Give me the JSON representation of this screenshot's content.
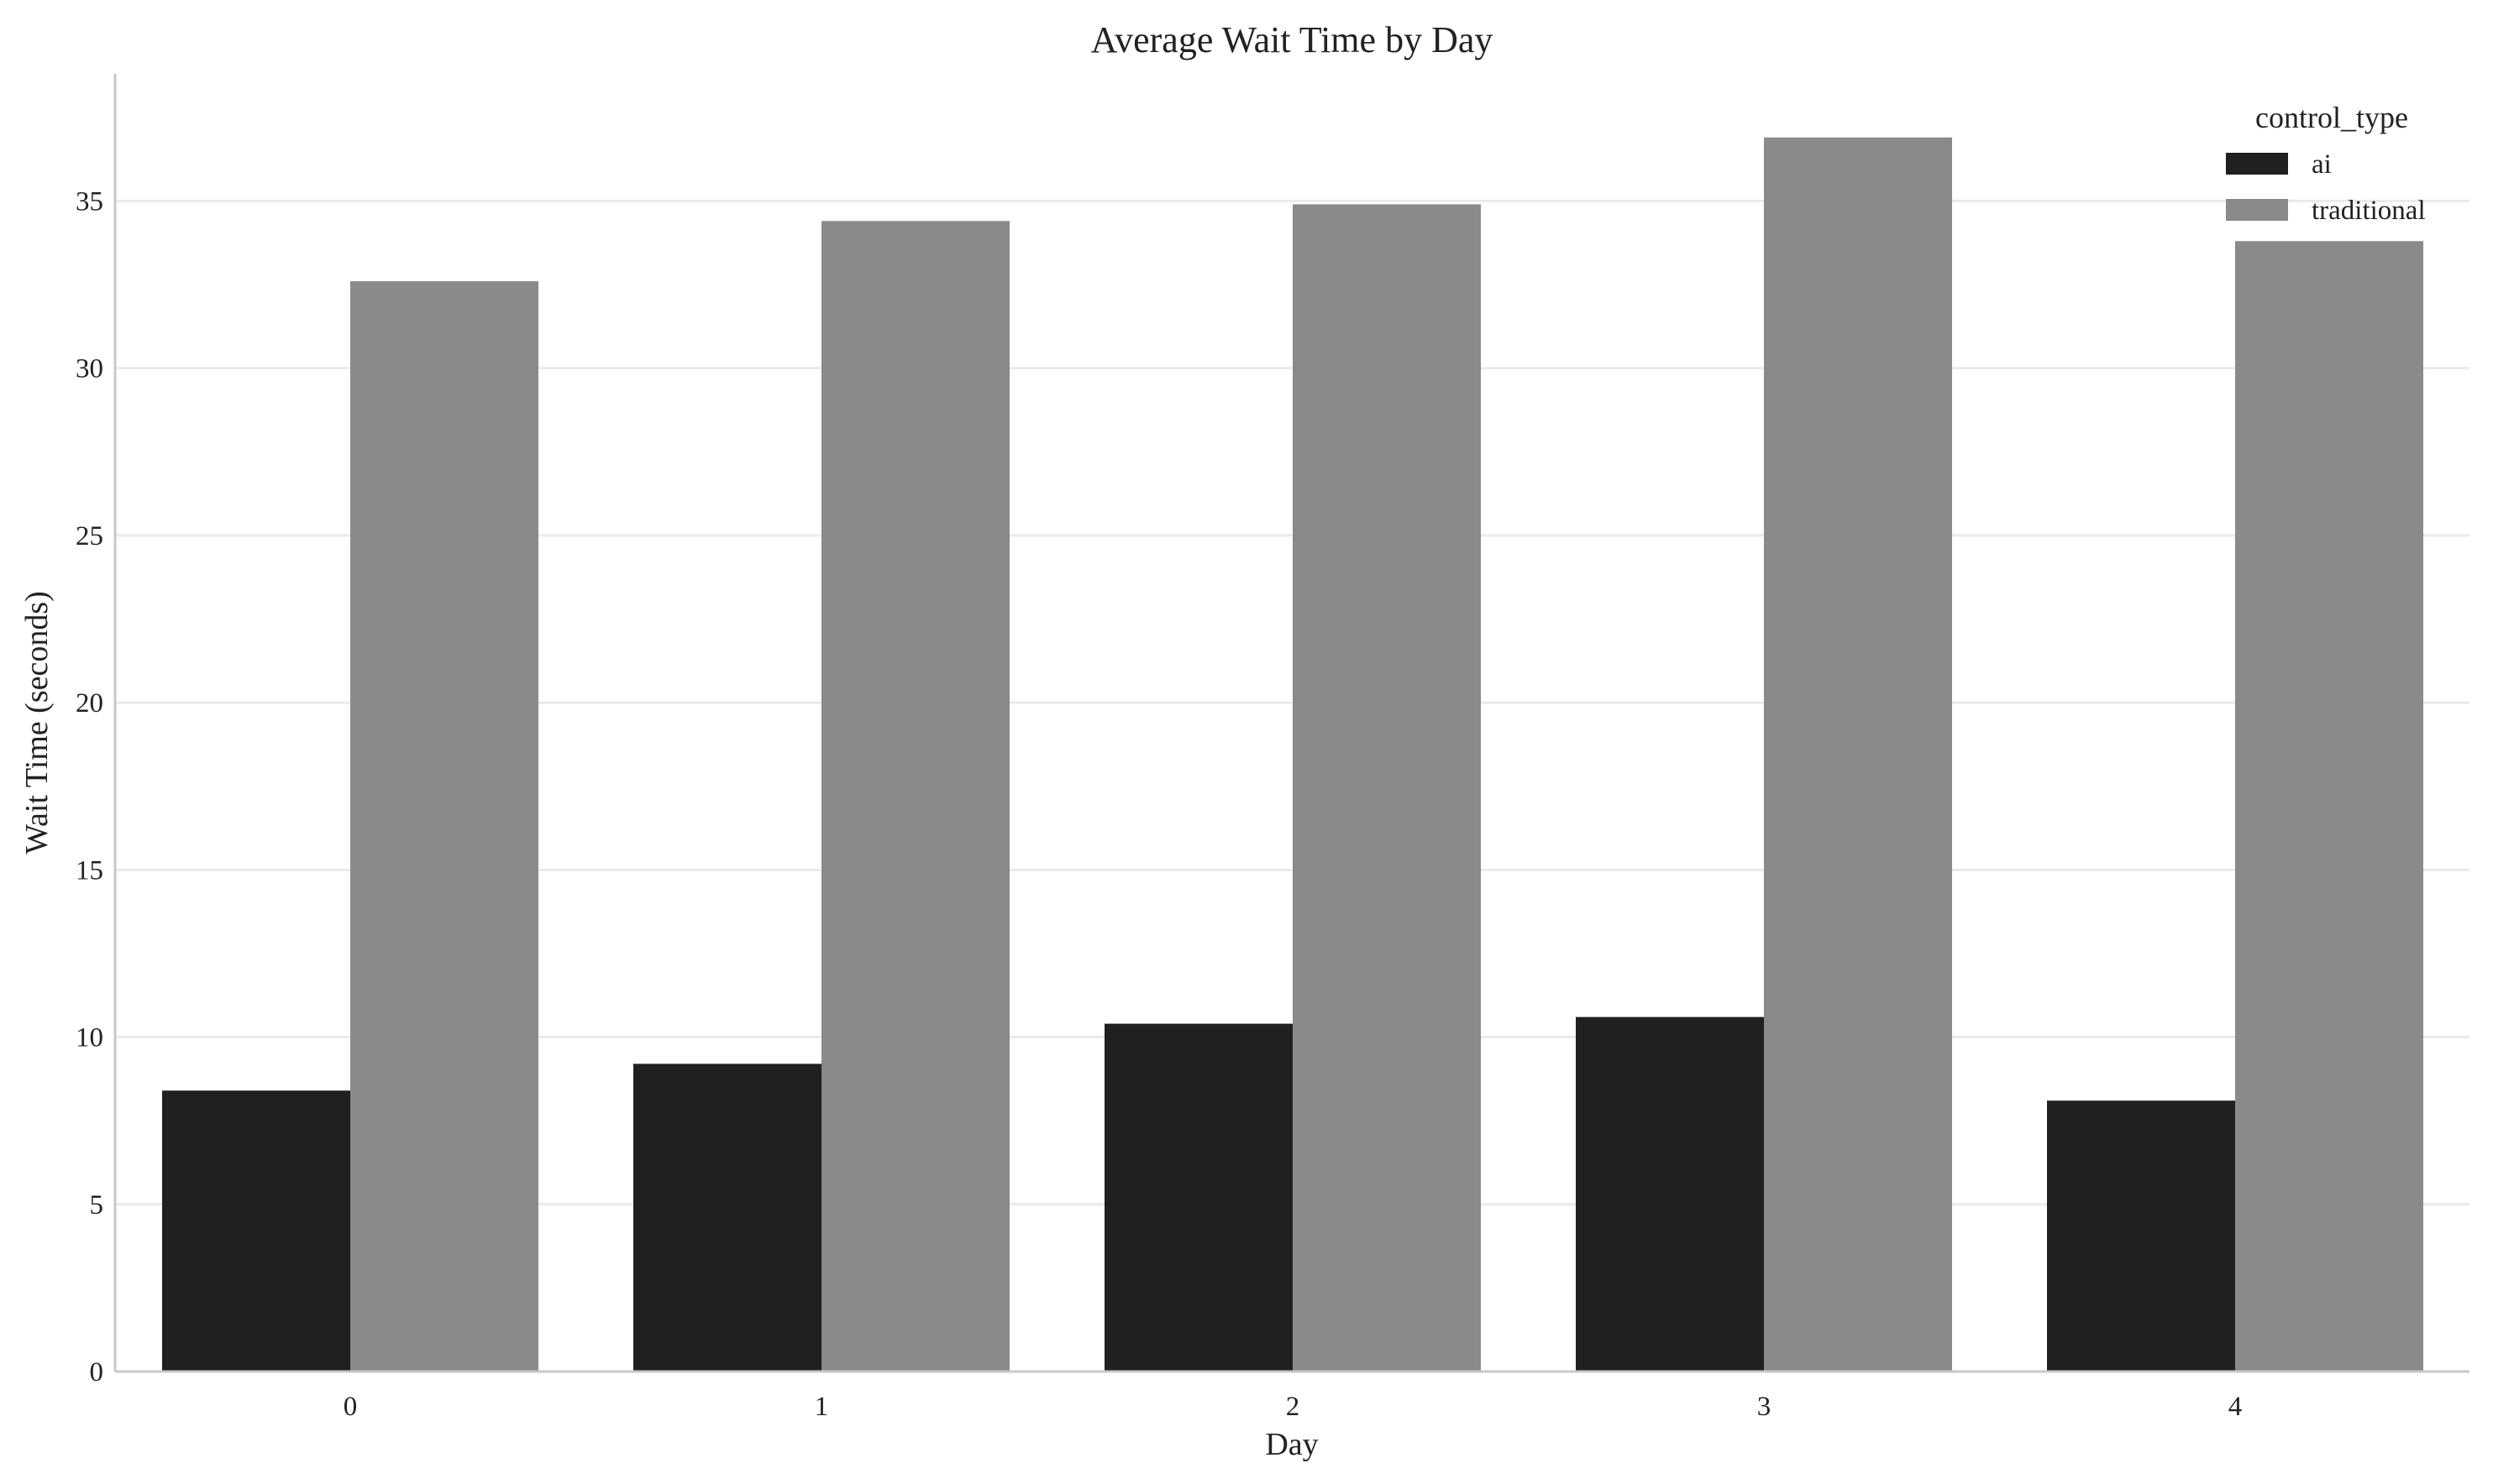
{
  "chart_data": {
    "type": "bar",
    "title": "Average Wait Time by Day",
    "xlabel": "Day",
    "ylabel": "Wait Time (seconds)",
    "categories": [
      "0",
      "1",
      "2",
      "3",
      "4"
    ],
    "ylim": [
      0,
      38.8
    ],
    "yticks": [
      0,
      5,
      10,
      15,
      20,
      25,
      30,
      35
    ],
    "grid": "horizontal",
    "legend": {
      "title": "control_type",
      "placement": "top-right"
    },
    "series": [
      {
        "name": "ai",
        "color": "#202020",
        "values": [
          8.4,
          9.2,
          10.4,
          10.6,
          8.1
        ]
      },
      {
        "name": "traditional",
        "color": "#8a8a8a",
        "values": [
          32.6,
          34.4,
          34.9,
          36.9,
          33.8
        ]
      }
    ]
  }
}
